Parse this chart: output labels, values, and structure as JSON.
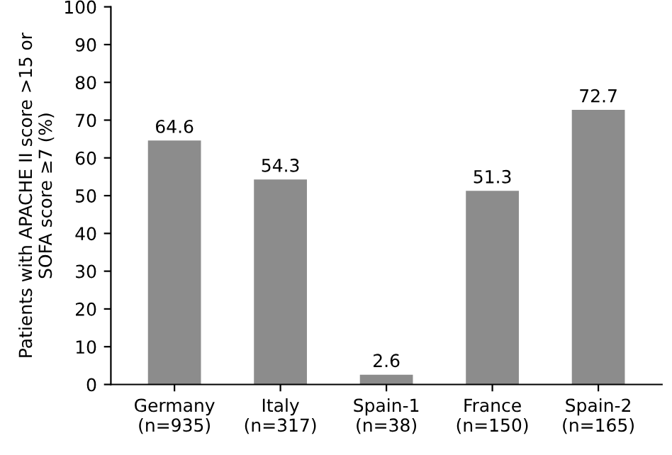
{
  "chart_data": {
    "type": "bar",
    "ylabel": "Patients with APACHE II score >15 or\nSOFA score ≥7 (%)",
    "categories": [
      "Germany\n(n=935)",
      "Italy\n(n=317)",
      "Spain-1\n(n=38)",
      "France\n(n=150)",
      "Spain-2\n(n=165)"
    ],
    "values": [
      64.6,
      54.3,
      2.6,
      51.3,
      72.7
    ],
    "color": "#8c8c8c",
    "ylim": [
      0,
      100
    ],
    "yticks": [
      0,
      10,
      20,
      30,
      40,
      50,
      60,
      70,
      80,
      90,
      100
    ],
    "data_labels": true,
    "grid": false,
    "legend": false
  }
}
